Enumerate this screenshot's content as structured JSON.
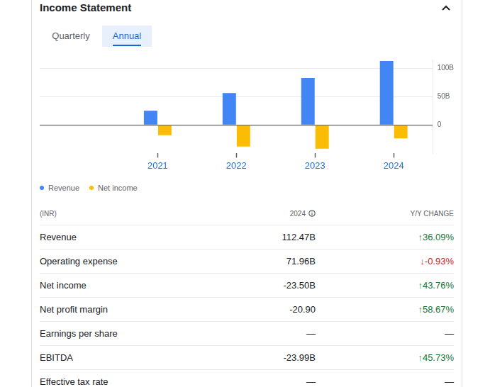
{
  "header": {
    "title": "Income Statement",
    "tabs": [
      "Quarterly",
      "Annual"
    ],
    "active_tab": "Annual"
  },
  "chart_data": {
    "type": "bar",
    "categories": [
      null,
      "2021",
      "2022",
      "2023",
      "2024"
    ],
    "series": [
      {
        "name": "Revenue",
        "color": "#4285f4",
        "values": [
          null,
          25,
          56,
          82.6,
          112.47
        ]
      },
      {
        "name": "Net income",
        "color": "#fbbc04",
        "values": [
          null,
          -18,
          -38,
          -41.8,
          -23.5
        ]
      }
    ],
    "ylim": [
      -50,
      115
    ],
    "yticks": [
      0,
      {
        "value": 50,
        "label": "50B"
      },
      {
        "value": 100,
        "label": "100B"
      }
    ],
    "grid": true,
    "legend": "bottom"
  },
  "table": {
    "header": [
      "(INR)",
      "2024",
      "Y/Y CHANGE"
    ],
    "rows": [
      [
        "Revenue",
        "112.47B",
        "↑36.09%"
      ],
      [
        "Operating expense",
        "71.96B",
        "↓-0.93%"
      ],
      [
        "Net income",
        "-23.50B",
        "↑43.76%"
      ],
      [
        "Net profit margin",
        "-20.90",
        "↑58.67%"
      ],
      [
        "Earnings per share",
        "—",
        "—"
      ],
      [
        "EBITDA",
        "-23.99B",
        "↑45.73%"
      ],
      [
        "Effective tax rate",
        "—",
        "—"
      ]
    ]
  }
}
